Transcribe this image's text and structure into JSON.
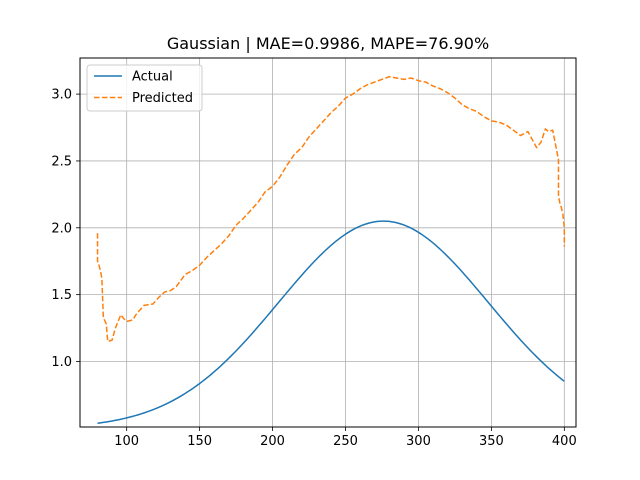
{
  "chart_data": {
    "type": "line",
    "title": "Gaussian | MAE=0.9986, MAPE=76.90%",
    "xlabel": "",
    "ylabel": "",
    "xlim": [
      68,
      408
    ],
    "ylim": [
      0.51,
      3.27
    ],
    "xticks": [
      100,
      150,
      200,
      250,
      300,
      350,
      400
    ],
    "yticks": [
      1.0,
      1.5,
      2.0,
      2.5,
      3.0
    ],
    "xtick_labels": [
      "100",
      "150",
      "200",
      "250",
      "300",
      "350",
      "400"
    ],
    "ytick_labels": [
      "1.0",
      "1.5",
      "2.0",
      "2.5",
      "3.0"
    ],
    "grid": true,
    "legend_position": "top-left",
    "series": [
      {
        "name": "Actual",
        "color": "#1f77b4",
        "style": "solid",
        "gaussian": {
          "amplitude": 1.55,
          "mean": 276,
          "sigma": 72,
          "offset": 0.5
        },
        "x_range": [
          80,
          400
        ]
      },
      {
        "name": "Predicted",
        "color": "#ff7f0e",
        "style": "dashed",
        "points": [
          [
            80,
            1.96
          ],
          [
            80,
            1.75
          ],
          [
            81,
            1.72
          ],
          [
            82,
            1.68
          ],
          [
            83,
            1.62
          ],
          [
            84,
            1.33
          ],
          [
            86,
            1.28
          ],
          [
            87,
            1.15
          ],
          [
            90,
            1.16
          ],
          [
            92,
            1.24
          ],
          [
            93,
            1.27
          ],
          [
            96,
            1.35
          ],
          [
            98,
            1.32
          ],
          [
            100,
            1.3
          ],
          [
            104,
            1.31
          ],
          [
            107,
            1.36
          ],
          [
            112,
            1.42
          ],
          [
            118,
            1.43
          ],
          [
            122,
            1.48
          ],
          [
            126,
            1.52
          ],
          [
            130,
            1.53
          ],
          [
            134,
            1.56
          ],
          [
            140,
            1.65
          ],
          [
            145,
            1.68
          ],
          [
            150,
            1.72
          ],
          [
            155,
            1.78
          ],
          [
            160,
            1.83
          ],
          [
            165,
            1.88
          ],
          [
            170,
            1.94
          ],
          [
            175,
            2.02
          ],
          [
            180,
            2.07
          ],
          [
            185,
            2.13
          ],
          [
            190,
            2.19
          ],
          [
            195,
            2.27
          ],
          [
            200,
            2.31
          ],
          [
            205,
            2.38
          ],
          [
            210,
            2.47
          ],
          [
            215,
            2.55
          ],
          [
            220,
            2.6
          ],
          [
            225,
            2.68
          ],
          [
            230,
            2.74
          ],
          [
            235,
            2.8
          ],
          [
            240,
            2.86
          ],
          [
            245,
            2.91
          ],
          [
            250,
            2.97
          ],
          [
            255,
            3.0
          ],
          [
            260,
            3.04
          ],
          [
            265,
            3.07
          ],
          [
            270,
            3.09
          ],
          [
            275,
            3.11
          ],
          [
            280,
            3.13
          ],
          [
            285,
            3.12
          ],
          [
            290,
            3.11
          ],
          [
            295,
            3.12
          ],
          [
            300,
            3.1
          ],
          [
            305,
            3.09
          ],
          [
            310,
            3.06
          ],
          [
            315,
            3.04
          ],
          [
            320,
            3.01
          ],
          [
            325,
            2.97
          ],
          [
            330,
            2.92
          ],
          [
            335,
            2.89
          ],
          [
            340,
            2.87
          ],
          [
            345,
            2.83
          ],
          [
            350,
            2.8
          ],
          [
            355,
            2.79
          ],
          [
            360,
            2.77
          ],
          [
            365,
            2.73
          ],
          [
            370,
            2.69
          ],
          [
            375,
            2.72
          ],
          [
            378,
            2.66
          ],
          [
            381,
            2.6
          ],
          [
            384,
            2.64
          ],
          [
            387,
            2.74
          ],
          [
            389,
            2.72
          ],
          [
            392,
            2.73
          ],
          [
            394,
            2.62
          ],
          [
            396,
            2.51
          ],
          [
            396,
            2.24
          ],
          [
            397,
            2.18
          ],
          [
            398,
            2.15
          ],
          [
            399,
            2.1
          ],
          [
            400,
            2.0
          ],
          [
            400,
            1.86
          ]
        ]
      }
    ]
  }
}
